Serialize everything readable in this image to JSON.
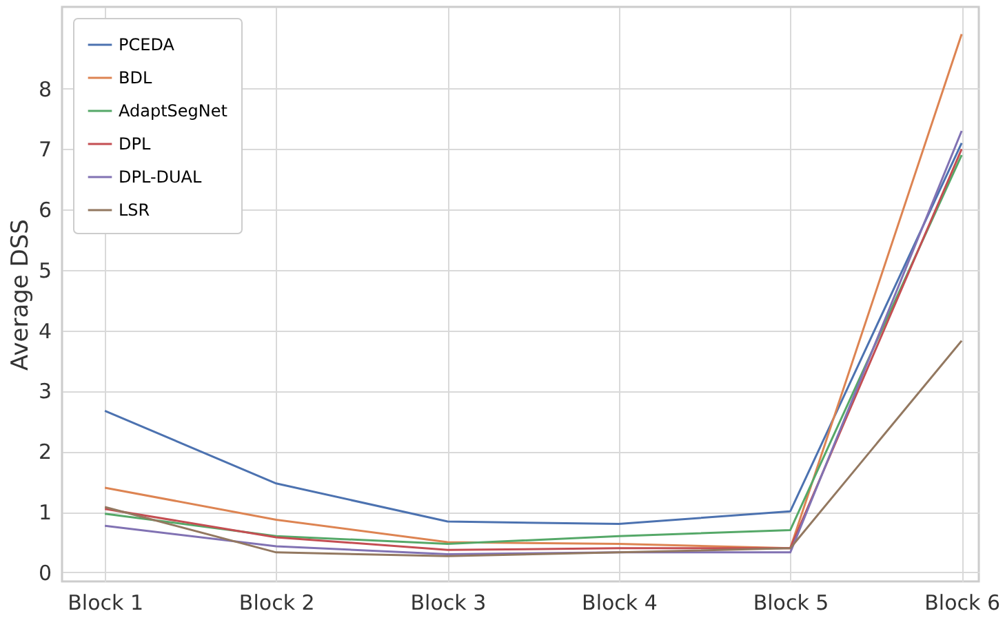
{
  "chart_data": {
    "type": "line",
    "ylabel": "Average DSS",
    "categories": [
      "Block 1",
      "Block 2",
      "Block 3",
      "Block 4",
      "Block 5",
      "Block 6"
    ],
    "series": [
      {
        "name": "PCEDA",
        "color": "#4c72b0",
        "values": [
          2.67,
          1.47,
          0.84,
          0.8,
          1.01,
          7.1
        ]
      },
      {
        "name": "BDL",
        "color": "#dd8452",
        "values": [
          1.4,
          0.87,
          0.5,
          0.47,
          0.4,
          8.9
        ]
      },
      {
        "name": "AdaptSegNet",
        "color": "#55a868",
        "values": [
          0.97,
          0.6,
          0.47,
          0.6,
          0.7,
          6.9
        ]
      },
      {
        "name": "DPL",
        "color": "#c44e52",
        "values": [
          1.05,
          0.58,
          0.37,
          0.4,
          0.4,
          7.0
        ]
      },
      {
        "name": "DPL-DUAL",
        "color": "#8172b3",
        "values": [
          0.77,
          0.43,
          0.3,
          0.33,
          0.33,
          7.3
        ]
      },
      {
        "name": "LSR",
        "color": "#937860",
        "values": [
          1.08,
          0.33,
          0.27,
          0.33,
          0.4,
          3.83
        ]
      }
    ],
    "ylim": [
      -0.15,
      9.35
    ],
    "yticks": [
      0,
      1,
      2,
      3,
      4,
      5,
      6,
      7,
      8
    ],
    "grid": true,
    "legend": "top left",
    "marker": "none",
    "line_style": "solid"
  }
}
